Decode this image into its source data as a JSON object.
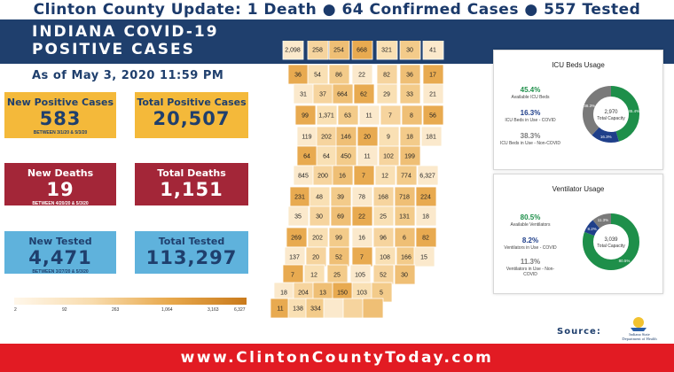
{
  "header": {
    "update_line": "Clinton County Update: 1 Death ● 64 Confirmed Cases ● 557 Tested"
  },
  "title": {
    "line1": "INDIANA COVID-19",
    "line2": "POSITIVE CASES"
  },
  "as_of": "As of May 3, 2020 11:59 PM",
  "cards": {
    "new_positive": {
      "label": "New Positive Cases",
      "value": "583",
      "sub": "BETWEEN 3/1/20 & 5/3/20"
    },
    "total_positive": {
      "label": "Total Positive Cases",
      "value": "20,507"
    },
    "new_deaths": {
      "label": "New Deaths",
      "value": "19",
      "sub": "BETWEEN 4/20/20 & 5/3/20"
    },
    "total_deaths": {
      "label": "Total Deaths",
      "value": "1,151"
    },
    "new_tested": {
      "label": "New Tested",
      "value": "4,471",
      "sub": "BETWEEN 3/27/20 & 5/3/20"
    },
    "total_tested": {
      "label": "Total Tested",
      "value": "113,297"
    }
  },
  "legend": {
    "labels": [
      "2",
      "92",
      "263",
      "1,064",
      "3,163",
      "6,327"
    ]
  },
  "map_labels": [
    "2,098",
    "258",
    "254",
    "668",
    "321",
    "30",
    "41",
    "36",
    "54",
    "86",
    "22",
    "82",
    "36",
    "17",
    "31",
    "37",
    "664",
    "62",
    "29",
    "33",
    "21",
    "99",
    "1,371",
    "63",
    "11",
    "7",
    "8",
    "56",
    "119",
    "202",
    "146",
    "20",
    "9",
    "18",
    "181",
    "64",
    "64",
    "450",
    "11",
    "102",
    "199",
    "845",
    "200",
    "16",
    "7",
    "12",
    "774",
    "6,327",
    "231",
    "48",
    "39",
    "78",
    "168",
    "718",
    "224",
    "35",
    "30",
    "69",
    "22",
    "25",
    "131",
    "18",
    "269",
    "202",
    "99",
    "16",
    "96",
    "6",
    "82",
    "137",
    "20",
    "52",
    "7",
    "108",
    "166",
    "15",
    "7",
    "12",
    "25",
    "105",
    "52",
    "30",
    "18",
    "204",
    "13",
    "150",
    "103",
    "5",
    "11",
    "138",
    "334"
  ],
  "icu": {
    "title": "ICU Beds Usage",
    "stats": [
      {
        "pct": "45.4%",
        "label": "Available ICU Beds"
      },
      {
        "pct": "16.3%",
        "label": "ICU Beds in Use - COVID"
      },
      {
        "pct": "38.3%",
        "label": "ICU Beds in Use - Non-COVID"
      }
    ],
    "center_value": "2,970",
    "center_label": "Total Capacity",
    "donut_labels": [
      "45.4%",
      "16.3%",
      "38.3%"
    ],
    "segments": [
      0.454,
      0.163,
      0.383
    ],
    "colors": [
      "#1e8f4a",
      "#1f3f8a",
      "#7a7a7a"
    ]
  },
  "vent": {
    "title": "Ventilator Usage",
    "stats": [
      {
        "pct": "80.5%",
        "label": "Available Ventilators"
      },
      {
        "pct": "8.2%",
        "label": "Ventilators in Use - COVID"
      },
      {
        "pct": "11.3%",
        "label": "Ventilators in Use - Non-COVID"
      }
    ],
    "center_value": "3,039",
    "center_label": "Total Capacity",
    "donut_labels": [
      "80.5%",
      "8.2%",
      "11.3%"
    ],
    "segments": [
      0.805,
      0.082,
      0.113
    ],
    "colors": [
      "#1e8f4a",
      "#1f3f8a",
      "#7a7a7a"
    ]
  },
  "source": {
    "label": "Source:",
    "logo_line1": "Indiana State",
    "logo_line2": "Department of Health"
  },
  "footer": {
    "url": "www.ClintonCountyToday.com"
  }
}
